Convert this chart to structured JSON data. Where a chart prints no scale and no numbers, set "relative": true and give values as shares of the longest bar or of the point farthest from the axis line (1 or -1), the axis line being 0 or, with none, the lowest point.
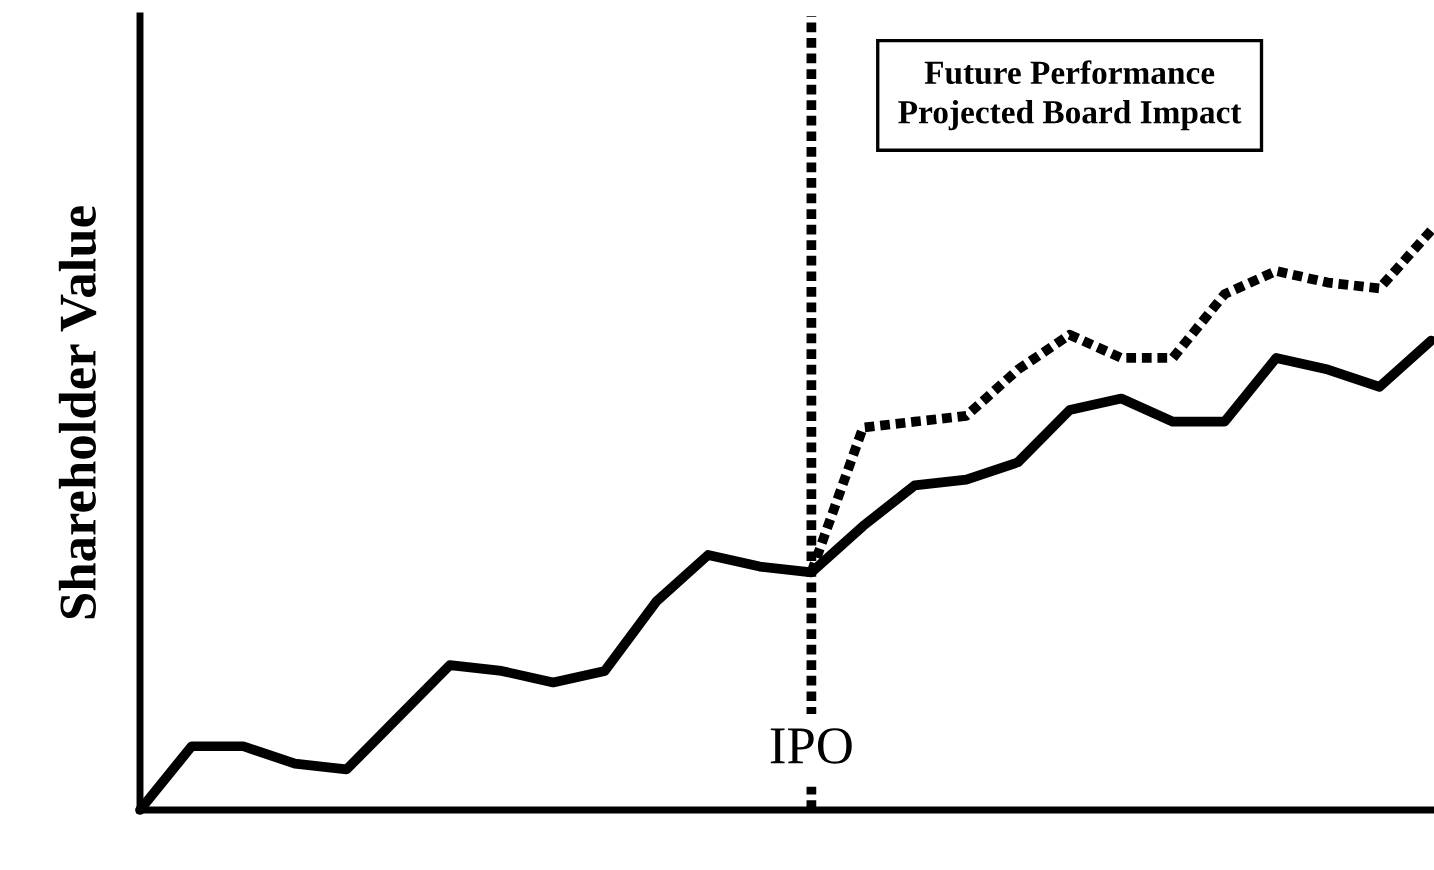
{
  "chart_data": {
    "type": "line",
    "relative": true,
    "ylabel": "Shareholder Value",
    "marker": "none",
    "categories": [
      null,
      null,
      null,
      null,
      null,
      null,
      null,
      null,
      null,
      null,
      null,
      null,
      null,
      null,
      null,
      null,
      null,
      null,
      null,
      null,
      null,
      null,
      null,
      null,
      null,
      null
    ],
    "series": [
      {
        "color": "#000000",
        "line_style": "solid",
        "values": [
          0,
          0.11,
          0.11,
          0.08,
          0.07,
          0.16,
          0.25,
          0.24,
          0.22,
          0.24,
          0.36,
          0.44,
          0.42,
          0.41,
          0.49,
          0.56,
          0.57,
          0.6,
          0.69,
          0.71,
          0.67,
          0.67,
          0.78,
          0.76,
          0.73,
          0.81
        ]
      },
      {
        "color": "#000000",
        "line_style": "dotted",
        "values": [
          null,
          null,
          null,
          null,
          null,
          null,
          null,
          null,
          null,
          null,
          null,
          null,
          null,
          0.41,
          0.66,
          0.67,
          0.68,
          0.76,
          0.82,
          0.78,
          0.78,
          0.89,
          0.93,
          0.91,
          0.9,
          1
        ]
      }
    ],
    "annotations": [
      "IPO",
      "Future Performance\nProjected Board Impact"
    ]
  }
}
